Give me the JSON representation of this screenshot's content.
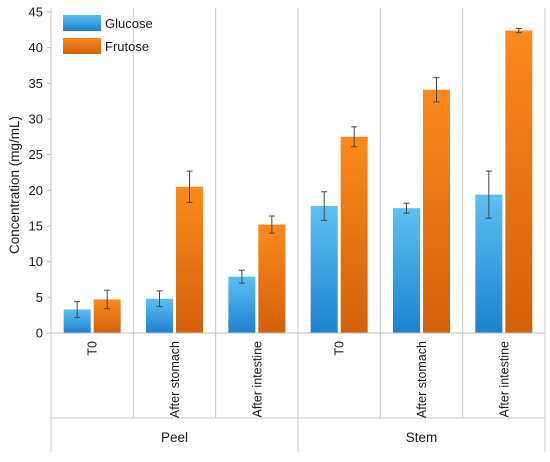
{
  "chart_data": {
    "type": "bar",
    "title": "",
    "xlabel": "",
    "ylabel": "Concentration (mg/mL)",
    "ylim": [
      0,
      45
    ],
    "yticks": [
      0,
      5,
      10,
      15,
      20,
      25,
      30,
      35,
      40,
      45
    ],
    "grid": false,
    "legend_position": "top-left",
    "groups": [
      "Peel",
      "Stem"
    ],
    "categories": [
      "T0",
      "After stomach",
      "After intestine",
      "T0",
      "After stomach",
      "After intestine"
    ],
    "category_group": [
      0,
      0,
      0,
      1,
      1,
      1
    ],
    "series": [
      {
        "name": "Glucose",
        "color": "#29a3e6",
        "values": [
          3.3,
          4.8,
          7.9,
          17.8,
          17.5,
          19.4
        ],
        "errors": [
          1.1,
          1.1,
          0.9,
          2.0,
          0.7,
          3.3
        ]
      },
      {
        "name": "Frutose",
        "color": "#f07a10",
        "values": [
          4.7,
          20.5,
          15.2,
          27.5,
          34.1,
          42.4
        ],
        "errors": [
          1.3,
          2.2,
          1.2,
          1.4,
          1.7,
          0.3
        ]
      }
    ]
  }
}
